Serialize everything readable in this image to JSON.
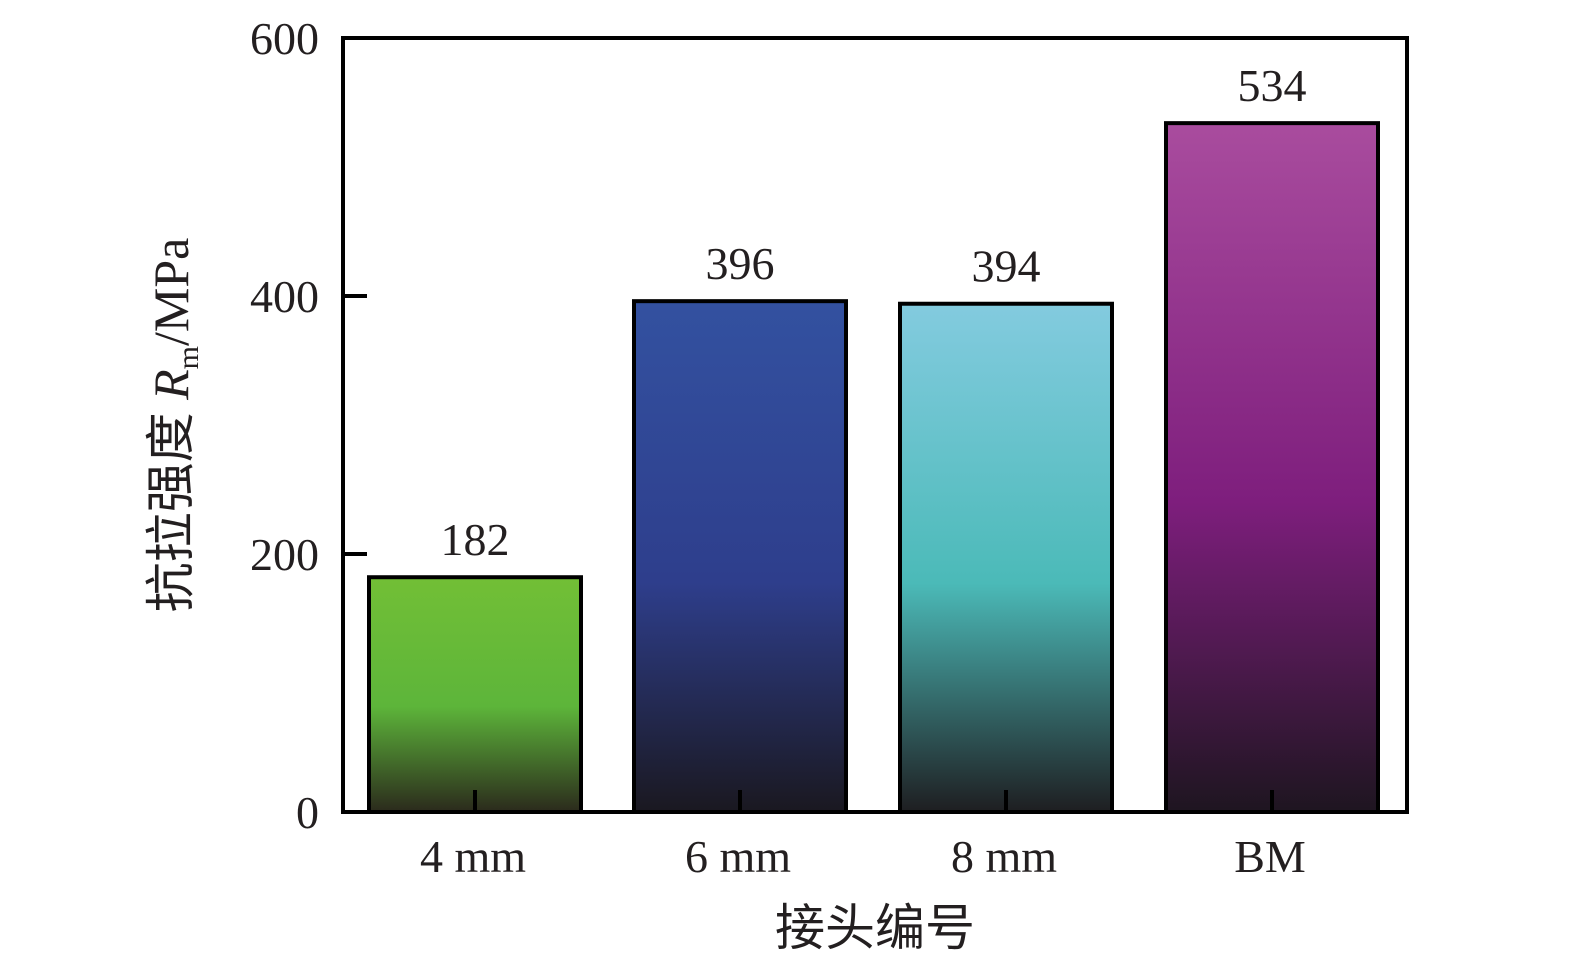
{
  "chart_data": {
    "type": "bar",
    "categories": [
      "4 mm",
      "6 mm",
      "8 mm",
      "BM"
    ],
    "values": [
      182,
      396,
      394,
      534
    ],
    "data_labels": [
      "182",
      "396",
      "394",
      "534"
    ],
    "xlabel": "接头编号",
    "ylabel": {
      "prefix": "抗拉强度 ",
      "symbol": "R",
      "subscript": "m",
      "suffix": "/MPa"
    },
    "ylim": [
      0,
      600
    ],
    "yticks": [
      0,
      200,
      400,
      600
    ],
    "ytick_labels": [
      "0",
      "200",
      "400",
      "600"
    ],
    "grid": false,
    "legend": "none",
    "colors": {
      "bar_top": [
        "#72bf36",
        "#3351a0",
        "#83cbdf",
        "#a94c9e"
      ],
      "bar_mid": [
        "#5db53a",
        "#2e3e8c",
        "#4bbab8",
        "#7e1e7d"
      ],
      "bar_bottom": [
        "#2b2a1c",
        "#1a1820",
        "#1e1e21",
        "#1e1520"
      ],
      "outline": "#000000",
      "text": "#231f20"
    }
  }
}
